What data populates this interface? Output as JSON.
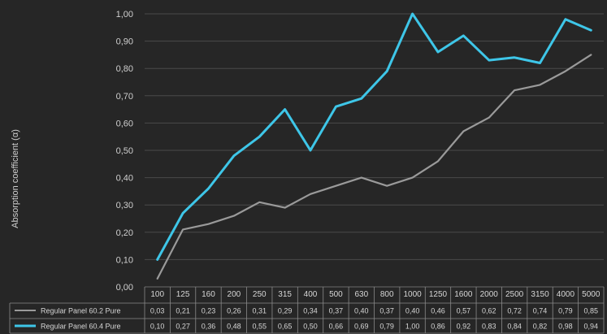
{
  "chart_data": {
    "type": "line",
    "title": "",
    "ylabel": "Absorption coefficient (α)",
    "xlabel": "",
    "ylim": [
      0,
      1
    ],
    "y_ticks": [
      "0,00",
      "0,10",
      "0,20",
      "0,30",
      "0,40",
      "0,50",
      "0,60",
      "0,70",
      "0,80",
      "0,90",
      "1,00"
    ],
    "categories": [
      "100",
      "125",
      "160",
      "200",
      "250",
      "315",
      "400",
      "500",
      "630",
      "800",
      "1000",
      "1250",
      "1600",
      "2000",
      "2500",
      "3150",
      "4000",
      "5000"
    ],
    "grid": true,
    "legend": "data-table-below",
    "series": [
      {
        "name": "Regular Panel 60.2 Pure",
        "color": "#9a9a9a",
        "values": [
          0.03,
          0.21,
          0.23,
          0.26,
          0.31,
          0.29,
          0.34,
          0.37,
          0.4,
          0.37,
          0.4,
          0.46,
          0.57,
          0.62,
          0.72,
          0.74,
          0.79,
          0.85
        ],
        "labels": [
          "0,03",
          "0,21",
          "0,23",
          "0,26",
          "0,31",
          "0,29",
          "0,34",
          "0,37",
          "0,40",
          "0,37",
          "0,40",
          "0,46",
          "0,57",
          "0,62",
          "0,72",
          "0,74",
          "0,79",
          "0,85"
        ]
      },
      {
        "name": "Regular Panel 60.4 Pure",
        "color": "#3ec6e8",
        "values": [
          0.1,
          0.27,
          0.36,
          0.48,
          0.55,
          0.65,
          0.5,
          0.66,
          0.69,
          0.79,
          1.0,
          0.86,
          0.92,
          0.83,
          0.84,
          0.82,
          0.98,
          0.94
        ],
        "labels": [
          "0,10",
          "0,27",
          "0,36",
          "0,48",
          "0,55",
          "0,65",
          "0,50",
          "0,66",
          "0,69",
          "0,79",
          "1,00",
          "0,86",
          "0,92",
          "0,83",
          "0,84",
          "0,82",
          "0,98",
          "0,94"
        ]
      }
    ]
  }
}
